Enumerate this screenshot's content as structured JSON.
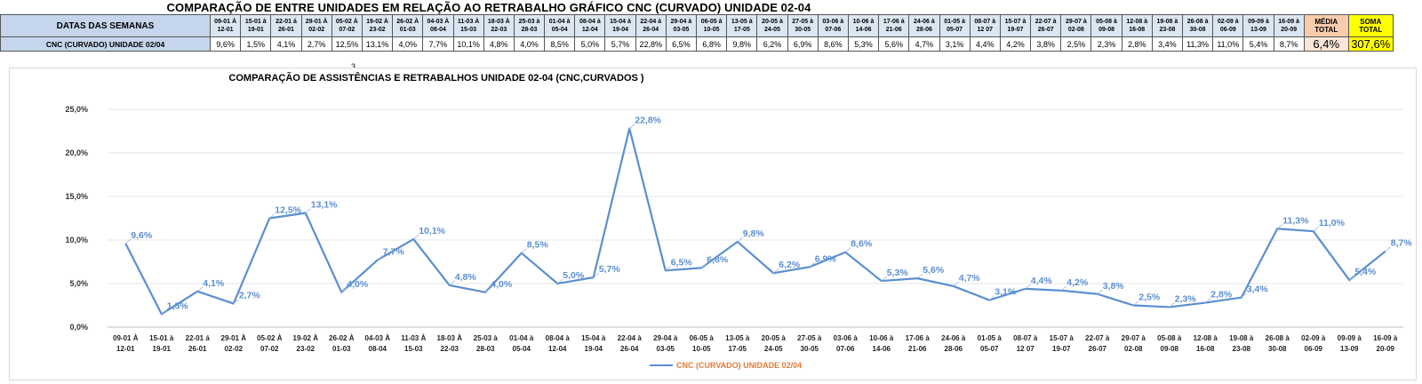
{
  "header": {
    "title": "COMPARAÇÃO DE ENTRE UNIDADES EM RELAÇÃO AO RETRABALHO GRÁFICO CNC (CURVADO) UNIDADE 02-04",
    "row1_label": "DATAS DAS SEMANAS",
    "row2_label": "CNC (CURVADO) UNIDADE 02/04",
    "weeks": [
      [
        "09-01 À",
        "12-01"
      ],
      [
        "15-01 à",
        "19-01"
      ],
      [
        "22-01 á",
        "26-01"
      ],
      [
        "29-01 À",
        "02-02"
      ],
      [
        "05-02 À",
        "07-02"
      ],
      [
        "19-02 À",
        "23-02"
      ],
      [
        "26-02 À",
        "01-03"
      ],
      [
        "04-03 À",
        "08-04"
      ],
      [
        "11-03 À",
        "15-03"
      ],
      [
        "18-03 À",
        "22-03"
      ],
      [
        "25-03 à",
        "28-03"
      ],
      [
        "01-04 à",
        "05-04"
      ],
      [
        "08-04 à",
        "12-04"
      ],
      [
        "15-04 à",
        "19-04"
      ],
      [
        "22-04 à",
        "26-04"
      ],
      [
        "29-04 à",
        "03-05"
      ],
      [
        "06-05 à",
        "10-05"
      ],
      [
        "13-05 à",
        "17-05"
      ],
      [
        "20-05 à",
        "24-05"
      ],
      [
        "27-05 à",
        "30-05"
      ],
      [
        "03-06 à",
        "07-06"
      ],
      [
        "10-06 à",
        "14-06"
      ],
      [
        "17-06 à",
        "21-06"
      ],
      [
        "24-06 à",
        "28-06"
      ],
      [
        "01-05 à",
        "05-07"
      ],
      [
        "08-07 à",
        "12 07"
      ],
      [
        "15-07 à",
        "19-07"
      ],
      [
        "22-07 à",
        "26-07"
      ],
      [
        "29-07 à",
        "02-08"
      ],
      [
        "05-08 à",
        "09-08"
      ],
      [
        "12-08 à",
        "16-08"
      ],
      [
        "19-08 à",
        "23-08"
      ],
      [
        "26-08 à",
        "30-08"
      ],
      [
        "02-09 à",
        "06-09"
      ],
      [
        "09-09 à",
        "13-09"
      ],
      [
        "16-09 à",
        "20-09"
      ]
    ],
    "row_values": [
      "9,6%",
      "1,5%",
      "4,1%",
      "2,7%",
      "12,5%",
      "13,1%",
      "4,0%",
      "7,7%",
      "10,1%",
      "4,8%",
      "4,0%",
      "8,5%",
      "5,0%",
      "5,7%",
      "22,8%",
      "6,5%",
      "6,8%",
      "9,8%",
      "6,2%",
      "6,9%",
      "8,6%",
      "5,3%",
      "5,6%",
      "4,7%",
      "3,1%",
      "4,4%",
      "4,2%",
      "3,8%",
      "2,5%",
      "2,3%",
      "2,8%",
      "3,4%",
      "11,3%",
      "11,0%",
      "5,4%",
      "8,7%"
    ],
    "media_label": [
      "MÉDIA",
      "TOTAL"
    ],
    "soma_label": [
      "SOMA",
      "TOTAL"
    ],
    "media_value": "6,4%",
    "soma_value": "307,6%",
    "stray_text": "3"
  },
  "colors": {
    "line": "#5b8fd0",
    "label": "#5b8fd0",
    "legend_text": "#e07b39",
    "media_fill": "#fbe5d6",
    "soma_fill": "#ffff00"
  },
  "chart_data": {
    "type": "line",
    "title": "COMPARAÇÃO DE ASSISTÊNCIAS E RETRABALHOS UNIDADE 02-04  (CNC,CURVADOS )",
    "categories": [
      [
        "09-01 À",
        "12-01"
      ],
      [
        "15-01 à",
        "19-01"
      ],
      [
        "22-01 á",
        "26-01"
      ],
      [
        "29-01 À",
        "02-02"
      ],
      [
        "05-02 À",
        "07-02"
      ],
      [
        "19-02 À",
        "23-02"
      ],
      [
        "26-02 À",
        "01-03"
      ],
      [
        "04-03 À",
        "08-04"
      ],
      [
        "11-03 À",
        "15-03"
      ],
      [
        "18-03 À",
        "22-03"
      ],
      [
        "25-03 à",
        "28-03"
      ],
      [
        "01-04 à",
        "05-04"
      ],
      [
        "08-04 à",
        "12-04"
      ],
      [
        "15-04 à",
        "19-04"
      ],
      [
        "22-04 à",
        "26-04"
      ],
      [
        "29-04 à",
        "03-05"
      ],
      [
        "06-05 à",
        "10-05"
      ],
      [
        "13-05 à",
        "17-05"
      ],
      [
        "20-05 à",
        "24-05"
      ],
      [
        "27-05 à",
        "30-05"
      ],
      [
        "03-06 à",
        "07-06"
      ],
      [
        "10-06 à",
        "14-06"
      ],
      [
        "17-06 à",
        "21-06"
      ],
      [
        "24-06 à",
        "28-06"
      ],
      [
        "01-05 à",
        "05-07"
      ],
      [
        "08-07 à",
        "12 07"
      ],
      [
        "15-07 à",
        "19-07"
      ],
      [
        "22-07 à",
        "26-07"
      ],
      [
        "29-07 à",
        "02-08"
      ],
      [
        "05-08 à",
        "09-08"
      ],
      [
        "12-08 à",
        "16-08"
      ],
      [
        "19-08 à",
        "23-08"
      ],
      [
        "26-08 à",
        "30-08"
      ],
      [
        "02-09 à",
        "06-09"
      ],
      [
        "09-09 à",
        "13-09"
      ],
      [
        "16-09 à",
        "20-09"
      ]
    ],
    "series": [
      {
        "name": "CNC (CURVADO) UNIDADE 02/04",
        "values": [
          9.6,
          1.5,
          4.1,
          2.7,
          12.5,
          13.1,
          4.0,
          7.7,
          10.1,
          4.8,
          4.0,
          8.5,
          5.0,
          5.7,
          22.8,
          6.5,
          6.8,
          9.8,
          6.2,
          6.9,
          8.6,
          5.3,
          5.6,
          4.7,
          3.1,
          4.4,
          4.2,
          3.8,
          2.5,
          2.3,
          2.8,
          3.4,
          11.3,
          11.0,
          5.4,
          8.7
        ],
        "labels": [
          "9,6%",
          "1,5%",
          "4,1%",
          "2,7%",
          "12,5%",
          "13,1%",
          "4,0%",
          "7,7%",
          "10,1%",
          "4,8%",
          "4,0%",
          "8,5%",
          "5,0%",
          "5,7%",
          "22,8%",
          "6,5%",
          "6,8%",
          "9,8%",
          "6,2%",
          "6,9%",
          "8,6%",
          "5,3%",
          "5,6%",
          "4,7%",
          "3,1%",
          "4,4%",
          "4,2%",
          "3,8%",
          "2,5%",
          "2,3%",
          "2,8%",
          "3,4%",
          "11,3%",
          "11,0%",
          "5,4%",
          "8,7%"
        ]
      }
    ],
    "yticks": [
      "0,0%",
      "5,0%",
      "10,0%",
      "15,0%",
      "20,0%",
      "25,0%"
    ],
    "ylim": [
      0,
      25
    ],
    "grid": true,
    "legend": "bottom"
  }
}
